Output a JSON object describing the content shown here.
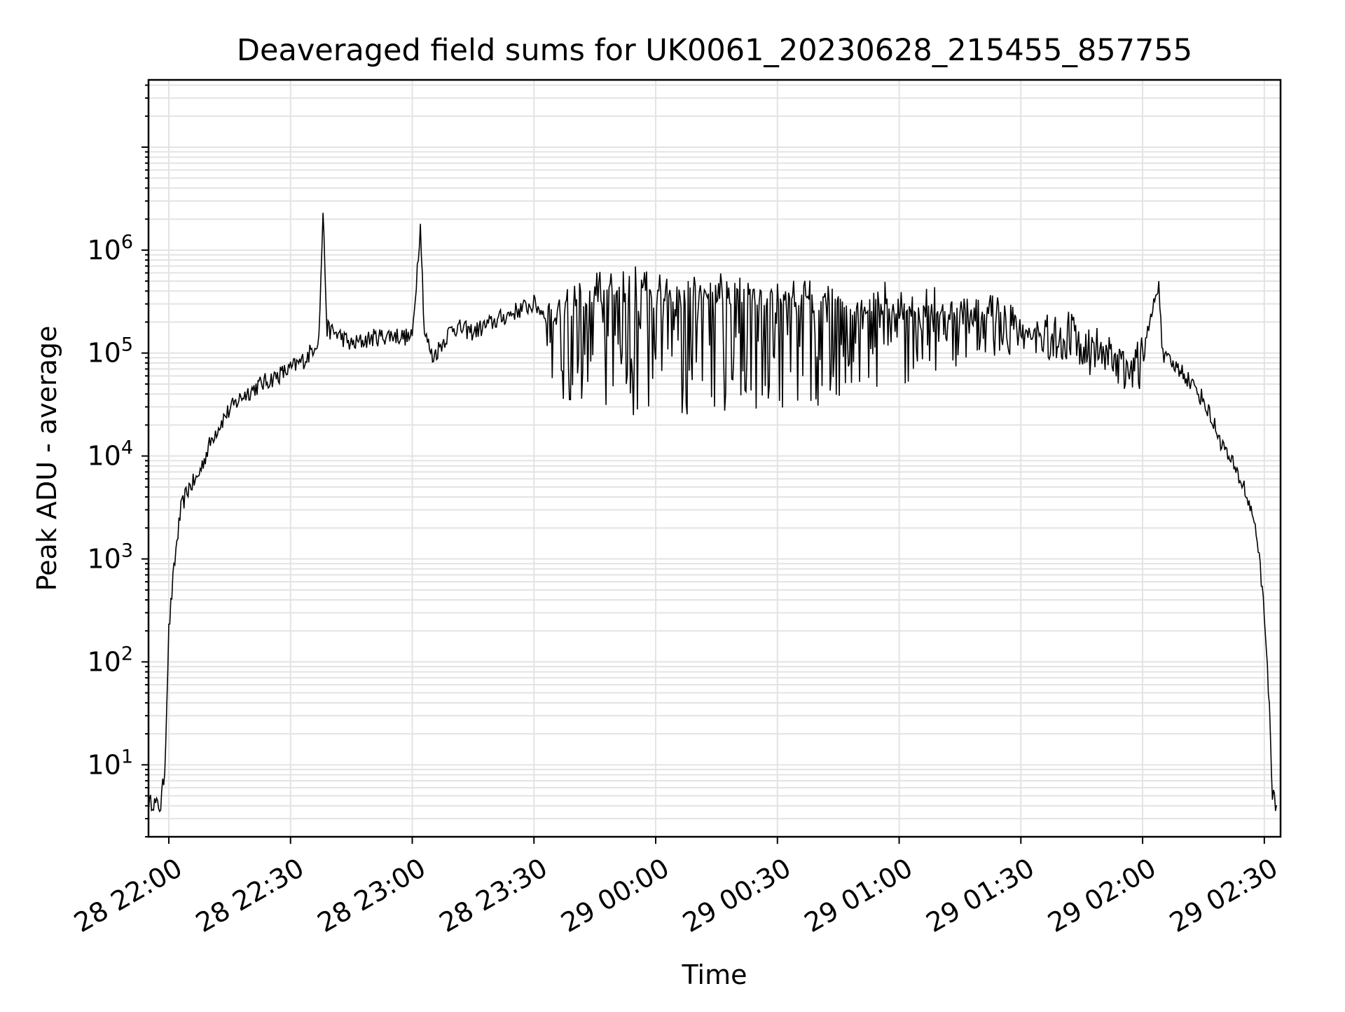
{
  "chart_data": {
    "type": "line",
    "title": "Deaveraged field sums for UK0061_20230628_215455_857755",
    "xlabel": "Time",
    "ylabel": "Peak ADU - average",
    "y_scale": "log",
    "ylim": [
      2,
      45000000
    ],
    "xlim": [
      "2023-06-28 21:55",
      "2023-06-29 02:34"
    ],
    "grid": true,
    "line_color": "#000000",
    "x_ticks": [
      {
        "value": "2023-06-28 22:00",
        "label": "28 22:00"
      },
      {
        "value": "2023-06-28 22:30",
        "label": "28 22:30"
      },
      {
        "value": "2023-06-28 23:00",
        "label": "28 23:00"
      },
      {
        "value": "2023-06-28 23:30",
        "label": "28 23:30"
      },
      {
        "value": "2023-06-29 00:00",
        "label": "29 00:00"
      },
      {
        "value": "2023-06-29 00:30",
        "label": "29 00:30"
      },
      {
        "value": "2023-06-29 01:00",
        "label": "29 01:00"
      },
      {
        "value": "2023-06-29 01:30",
        "label": "29 01:30"
      },
      {
        "value": "2023-06-29 02:00",
        "label": "29 02:00"
      },
      {
        "value": "2023-06-29 02:30",
        "label": "29 02:30"
      }
    ],
    "y_ticks": [
      {
        "value": 10,
        "label_base": "10",
        "label_exp": "1"
      },
      {
        "value": 100,
        "label_base": "10",
        "label_exp": "2"
      },
      {
        "value": 1000,
        "label_base": "10",
        "label_exp": "3"
      },
      {
        "value": 10000,
        "label_base": "10",
        "label_exp": "4"
      },
      {
        "value": 100000,
        "label_base": "10",
        "label_exp": "5"
      },
      {
        "value": 1000000,
        "label_base": "10",
        "label_exp": "6"
      }
    ],
    "series": [
      {
        "points": [
          [
            "2023-06-28 21:55",
            4
          ],
          [
            "2023-06-28 21:56",
            4.5
          ],
          [
            "2023-06-28 21:57",
            4
          ],
          [
            "2023-06-28 21:58",
            4
          ],
          [
            "2023-06-28 21:59",
            9
          ],
          [
            "2023-06-28 22:00",
            200
          ],
          [
            "2023-06-28 22:01",
            600
          ],
          [
            "2023-06-28 22:02",
            1500
          ],
          [
            "2023-06-28 22:03",
            3000
          ],
          [
            "2023-06-28 22:04",
            4000
          ],
          [
            "2023-06-28 22:05",
            5000
          ],
          [
            "2023-06-28 22:07",
            6000
          ],
          [
            "2023-06-28 22:09",
            10000
          ],
          [
            "2023-06-28 22:11",
            16000
          ],
          [
            "2023-06-28 22:14",
            25000
          ],
          [
            "2023-06-28 22:18",
            38000
          ],
          [
            "2023-06-28 22:22",
            48000
          ],
          [
            "2023-06-28 22:26",
            58000
          ],
          [
            "2023-06-28 22:30",
            70000
          ],
          [
            "2023-06-28 22:34",
            90000
          ],
          [
            "2023-06-28 22:37",
            140000
          ],
          [
            "2023-06-28 22:38",
            2300000
          ],
          [
            "2023-06-28 22:39",
            170000
          ],
          [
            "2023-06-28 22:42",
            150000
          ],
          [
            "2023-06-28 22:45",
            120000
          ],
          [
            "2023-06-28 22:50",
            140000
          ],
          [
            "2023-06-28 22:55",
            150000
          ],
          [
            "2023-06-28 23:00",
            140000
          ],
          [
            "2023-06-28 23:02",
            1800000
          ],
          [
            "2023-06-28 23:03",
            160000
          ],
          [
            "2023-06-28 23:05",
            90000
          ],
          [
            "2023-06-28 23:10",
            180000
          ],
          [
            "2023-06-28 23:15",
            160000
          ],
          [
            "2023-06-28 23:20",
            200000
          ],
          [
            "2023-06-28 23:25",
            250000
          ],
          [
            "2023-06-28 23:30",
            300000
          ],
          [
            "2023-06-28 23:35",
            200000
          ],
          [
            "2023-06-28 23:40",
            300000
          ],
          [
            "2023-06-28 23:45",
            350000
          ],
          [
            "2023-06-28 23:50",
            400000
          ],
          [
            "2023-06-28 23:55",
            400000
          ],
          [
            "2023-06-29 00:00",
            380000
          ],
          [
            "2023-06-29 00:05",
            350000
          ],
          [
            "2023-06-29 00:10",
            400000
          ],
          [
            "2023-06-29 00:15",
            380000
          ],
          [
            "2023-06-29 00:20",
            350000
          ],
          [
            "2023-06-29 00:25",
            350000
          ],
          [
            "2023-06-29 00:30",
            320000
          ],
          [
            "2023-06-29 00:40",
            300000
          ],
          [
            "2023-06-29 00:50",
            280000
          ],
          [
            "2023-06-29 01:00",
            280000
          ],
          [
            "2023-06-29 01:10",
            250000
          ],
          [
            "2023-06-29 01:20",
            220000
          ],
          [
            "2023-06-29 01:30",
            180000
          ],
          [
            "2023-06-29 01:40",
            150000
          ],
          [
            "2023-06-29 01:50",
            110000
          ],
          [
            "2023-06-29 02:00",
            90000
          ],
          [
            "2023-06-29 02:04",
            500000
          ],
          [
            "2023-06-29 02:05",
            90000
          ],
          [
            "2023-06-29 02:10",
            65000
          ],
          [
            "2023-06-29 02:15",
            35000
          ],
          [
            "2023-06-29 02:20",
            12000
          ],
          [
            "2023-06-29 02:25",
            5000
          ],
          [
            "2023-06-29 02:28",
            2000
          ],
          [
            "2023-06-29 02:30",
            300
          ],
          [
            "2023-06-29 02:31",
            60
          ],
          [
            "2023-06-29 02:32",
            5
          ],
          [
            "2023-06-29 02:33",
            4
          ]
        ],
        "dips": [
          [
            "2023-06-28 23:33",
            40000
          ],
          [
            "2023-06-28 23:45",
            25000
          ],
          [
            "2023-06-28 23:50",
            22000
          ],
          [
            "2023-06-28 23:55",
            20000
          ],
          [
            "2023-06-29 00:00",
            18000
          ],
          [
            "2023-06-29 00:05",
            20000
          ],
          [
            "2023-06-29 00:10",
            22000
          ],
          [
            "2023-06-29 00:20",
            25000
          ],
          [
            "2023-06-29 00:30",
            28000
          ],
          [
            "2023-06-29 00:40",
            30000
          ],
          [
            "2023-06-29 00:50",
            40000
          ],
          [
            "2023-06-29 01:00",
            50000
          ],
          [
            "2023-06-29 01:10",
            55000
          ],
          [
            "2023-06-29 01:20",
            80000
          ],
          [
            "2023-06-29 01:30",
            100000
          ],
          [
            "2023-06-29 01:40",
            80000
          ],
          [
            "2023-06-29 01:50",
            50000
          ],
          [
            "2023-06-29 02:00",
            40000
          ]
        ]
      }
    ]
  }
}
